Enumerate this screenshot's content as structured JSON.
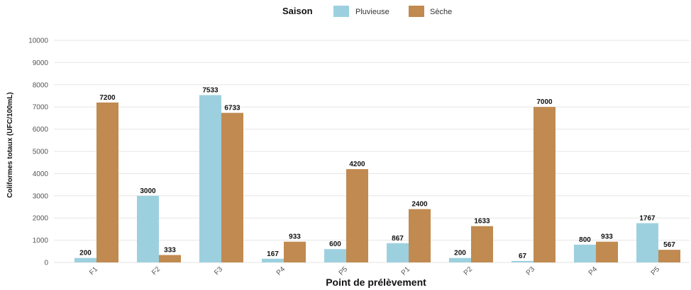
{
  "chart_data": {
    "type": "bar",
    "xlabel": "Point de prélèvement",
    "ylabel": "Coliformes totaux (UFC/100mL)",
    "ylim": [
      0,
      10000
    ],
    "yticks": [
      0,
      1000,
      2000,
      3000,
      4000,
      5000,
      6000,
      7000,
      8000,
      9000,
      10000
    ],
    "grid": true,
    "legend_title": "Saison",
    "legend_position": "top",
    "categories": [
      "F1",
      "F2",
      "F3",
      "P4",
      "P5",
      "P1",
      "P2",
      "P3",
      "P4",
      "P5"
    ],
    "series": [
      {
        "name": "Pluvieuse",
        "color": "#9dd0df",
        "values": [
          200,
          3000,
          7533,
          167,
          600,
          867,
          200,
          67,
          800,
          1767
        ]
      },
      {
        "name": "Sèche",
        "color": "#c08a50",
        "values": [
          7200,
          333,
          6733,
          933,
          4200,
          2400,
          1633,
          7000,
          933,
          567
        ]
      }
    ]
  }
}
